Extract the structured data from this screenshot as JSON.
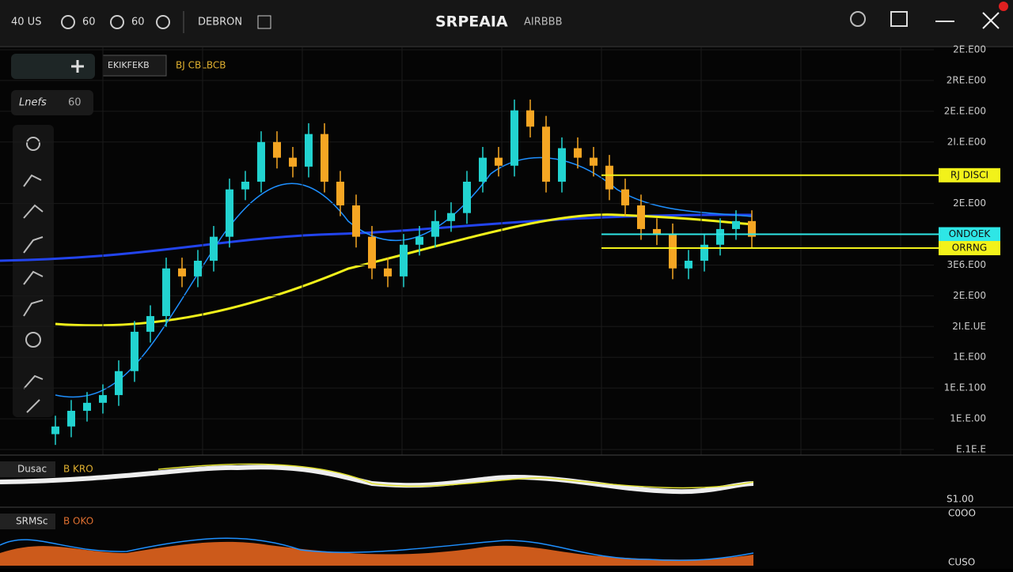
{
  "topbar": {
    "left": [
      "40 US",
      "60",
      "60",
      "DEBRON"
    ],
    "title": "SRPEAIA",
    "subtitle": "AIRBBB"
  },
  "toolbar": {
    "symbol": "EKIKFEKB",
    "price": "BJ CBLBCB",
    "interval": "Lnefs",
    "interval_value": "60"
  },
  "chart_data": {
    "type": "candlestick",
    "open": [
      0.5,
      0.75,
      1.26,
      1.52,
      1.77,
      2.55,
      3.83,
      4.34,
      5.89,
      5.63,
      6.14,
      6.92,
      8.46,
      8.71,
      10.0,
      9.49,
      9.2,
      10.26,
      8.71,
      7.94,
      6.92,
      5.89,
      5.63,
      6.66,
      6.92,
      7.43,
      7.69,
      8.71,
      9.49,
      9.23,
      11.03,
      10.5,
      8.71,
      9.8,
      9.49,
      9.23,
      8.46,
      7.94,
      7.17,
      7.0,
      5.89,
      6.14,
      6.66,
      7.17,
      7.43
    ],
    "high": [
      1.1,
      1.61,
      1.87,
      2.12,
      2.9,
      4.18,
      4.69,
      6.24,
      6.24,
      6.49,
      7.27,
      8.81,
      9.06,
      10.35,
      10.35,
      9.84,
      10.61,
      10.61,
      9.06,
      8.29,
      7.27,
      6.24,
      7.01,
      7.27,
      7.78,
      8.04,
      9.06,
      9.84,
      9.84,
      11.38,
      11.38,
      10.85,
      10.15,
      10.15,
      9.84,
      9.58,
      8.81,
      8.29,
      7.52,
      7.35,
      6.49,
      7.01,
      7.52,
      7.78,
      7.78
    ],
    "low": [
      0.15,
      0.4,
      0.91,
      1.17,
      1.42,
      2.2,
      3.48,
      3.99,
      5.28,
      5.28,
      5.79,
      6.57,
      8.11,
      8.36,
      9.14,
      8.85,
      8.85,
      8.36,
      7.59,
      6.57,
      5.54,
      5.28,
      5.28,
      6.31,
      6.57,
      7.08,
      7.34,
      8.36,
      8.88,
      8.88,
      10.15,
      8.36,
      8.36,
      9.14,
      8.88,
      8.11,
      7.59,
      6.82,
      6.65,
      5.54,
      5.54,
      5.79,
      6.31,
      6.82,
      6.57
    ],
    "close": [
      0.75,
      1.26,
      1.52,
      1.77,
      2.55,
      3.83,
      4.34,
      5.89,
      5.63,
      6.14,
      6.92,
      8.46,
      8.71,
      10.0,
      9.49,
      9.2,
      10.26,
      8.71,
      7.94,
      6.92,
      5.89,
      5.63,
      6.66,
      6.92,
      7.43,
      7.69,
      8.71,
      9.49,
      9.23,
      11.03,
      10.5,
      8.71,
      9.8,
      9.49,
      9.23,
      8.46,
      7.94,
      7.17,
      7.0,
      5.89,
      6.14,
      6.66,
      7.17,
      7.43,
      6.92
    ],
    "up_color": "#22d3d0",
    "down_color": "#f5a623",
    "ylim": [
      0,
      13
    ],
    "yticks": [
      {
        "value": 0,
        "label": "E.1E.E"
      },
      {
        "value": 1,
        "label": "1E.E.00"
      },
      {
        "value": 2,
        "label": "1E.E.100"
      },
      {
        "value": 3,
        "label": "1E.E00"
      },
      {
        "value": 4,
        "label": "2I.E.UE"
      },
      {
        "value": 5,
        "label": "2E.E00"
      },
      {
        "value": 6,
        "label": "3E6.E00"
      },
      {
        "value": 8,
        "label": "2E.E00"
      },
      {
        "value": 10,
        "label": "2I.E.E00"
      },
      {
        "value": 11,
        "label": "2E.E.E00"
      },
      {
        "value": 12,
        "label": "2RE.E00"
      },
      {
        "value": 13,
        "label": "2E.E00"
      }
    ],
    "grid": true,
    "level_tags": [
      {
        "label": "RJ DISCI",
        "value": 8.92,
        "color": "#f2f21a"
      },
      {
        "label": "ONDOEK",
        "value": 7.0,
        "color": "#2ee6e6"
      },
      {
        "label": "ORRNG",
        "value": 6.55,
        "color": "#f2f21a"
      }
    ]
  },
  "indicators": [
    {
      "name": "Dusac",
      "value": "B KRO",
      "scale": "S1.00"
    },
    {
      "name": "SRMSc",
      "value": "B OKO",
      "scale_top": "C0OO",
      "scale_bottom": "CUSO"
    }
  ]
}
